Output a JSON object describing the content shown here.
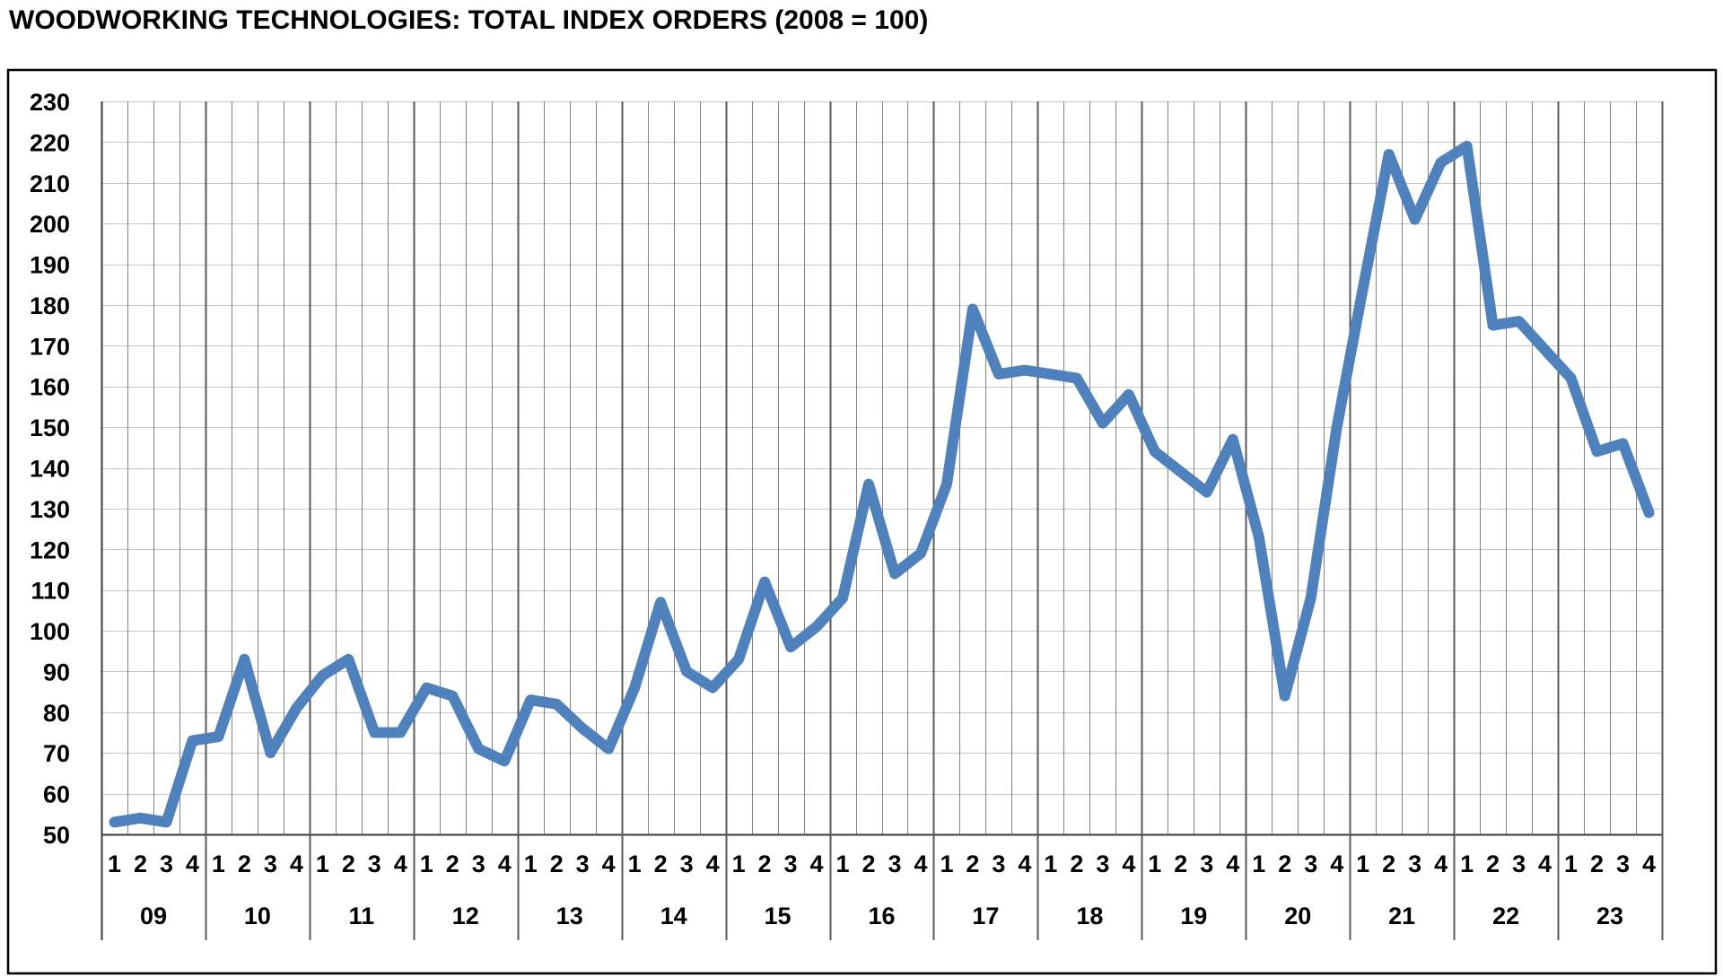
{
  "title": "WOODWORKING TECHNOLOGIES: TOTAL INDEX ORDERS (2008 = 100)",
  "chart_data": {
    "type": "line",
    "title": "WOODWORKING TECHNOLOGIES: TOTAL INDEX ORDERS (2008 = 100)",
    "x_years": [
      "09",
      "10",
      "11",
      "12",
      "13",
      "14",
      "15",
      "16",
      "17",
      "18",
      "19",
      "20",
      "21",
      "22",
      "23"
    ],
    "x_quarter_labels": [
      "1",
      "2",
      "3",
      "4"
    ],
    "values": [
      53,
      54,
      53,
      73,
      74,
      93,
      70,
      81,
      89,
      93,
      75,
      75,
      86,
      84,
      71,
      68,
      83,
      82,
      76,
      71,
      86,
      107,
      90,
      86,
      93,
      112,
      96,
      101,
      108,
      136,
      114,
      119,
      136,
      179,
      163,
      164,
      163,
      162,
      151,
      158,
      144,
      139,
      134,
      147,
      123,
      84,
      108,
      150,
      184,
      217,
      201,
      215,
      219,
      175,
      176,
      169,
      162,
      144,
      146,
      129
    ],
    "ylim": [
      50,
      230
    ],
    "ytick_step": 10,
    "y_tick_labels": [
      "230",
      "220",
      "210",
      "200",
      "190",
      "180",
      "170",
      "160",
      "150",
      "140",
      "130",
      "120",
      "110",
      "100",
      "90",
      "80",
      "70",
      "60",
      "50"
    ],
    "grid": true,
    "legend": "none",
    "colors": {
      "line": "#4f81bd",
      "grid_horizontal": "#c6c6c6",
      "grid_quarter": "#808080",
      "grid_year": "#595959",
      "axis": "#3a3a3a",
      "frame": "#000000",
      "text": "#000000",
      "background": "#ffffff"
    }
  }
}
